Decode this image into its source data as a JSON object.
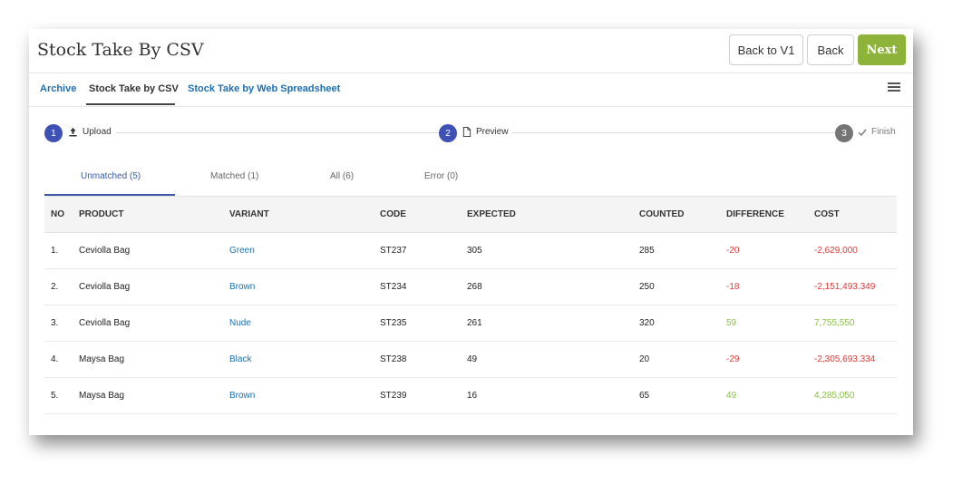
{
  "header": {
    "title": "Stock Take By CSV",
    "buttons": {
      "back_v1": "Back to V1",
      "back": "Back",
      "next": "Next"
    }
  },
  "nav_tabs": [
    {
      "label": "Archive",
      "active": false
    },
    {
      "label": "Stock Take by CSV",
      "active": true
    },
    {
      "label": "Stock Take by Web Spreadsheet",
      "active": false
    }
  ],
  "menu_icon": "hamburger-menu-icon",
  "steps": [
    {
      "number": "1",
      "label": "Upload",
      "icon": "upload-icon",
      "color": "#3f51b5"
    },
    {
      "number": "2",
      "label": "Preview",
      "icon": "file-icon",
      "color": "#3f51b5"
    },
    {
      "number": "3",
      "label": "Finish",
      "icon": "check-icon",
      "color": "#757575"
    }
  ],
  "sub_tabs": [
    {
      "label": "Unmatched (5)",
      "active": true
    },
    {
      "label": "Matched (1)",
      "active": false
    },
    {
      "label": "All (6)",
      "active": false
    },
    {
      "label": "Error (0)",
      "active": false
    }
  ],
  "table": {
    "columns": [
      "NO",
      "PRODUCT",
      "VARIANT",
      "CODE",
      "EXPECTED",
      "COUNTED",
      "DIFFERENCE",
      "COST"
    ],
    "rows": [
      [
        "1.",
        "Ceviolla Bag",
        "Green",
        "ST237",
        "305",
        "285",
        "-20",
        "-2,629,000"
      ],
      [
        "2.",
        "Ceviolla Bag",
        "Brown",
        "ST234",
        "268",
        "250",
        "-18",
        "-2,151,493.349"
      ],
      [
        "3.",
        "Ceviolla Bag",
        "Nude",
        "ST235",
        "261",
        "320",
        "59",
        "7,755,550"
      ],
      [
        "4.",
        "Maysa Bag",
        "Black",
        "ST238",
        "49",
        "20",
        "-29",
        "-2,305,693.334"
      ],
      [
        "5.",
        "Maysa Bag",
        "Brown",
        "ST239",
        "16",
        "65",
        "49",
        "4,285,050"
      ]
    ]
  },
  "colors": {
    "accent": "#3f51b5",
    "next_button": "#8db33a",
    "negative": "#e53935",
    "positive": "#8bc34a",
    "link": "#1f6fb0"
  }
}
